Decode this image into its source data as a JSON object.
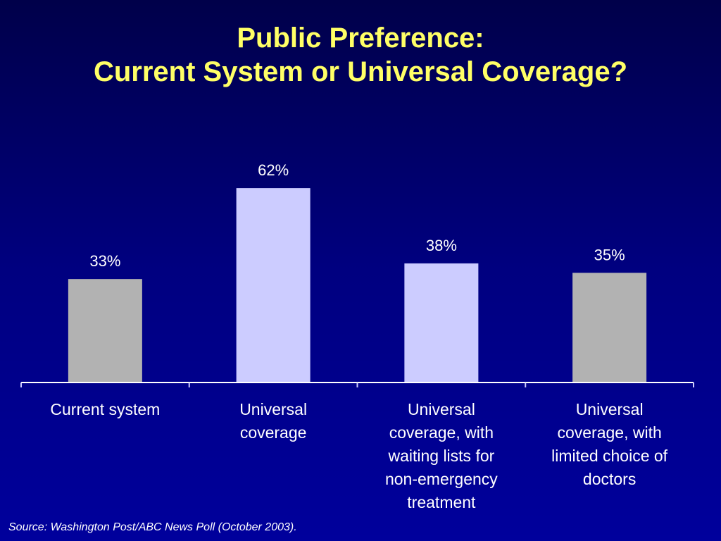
{
  "title_line1": "Public Preference:",
  "title_line2": "Current System or Universal Coverage?",
  "source": "Source: Washington Post/ABC News Poll (October 2003).",
  "colors": {
    "title": "#ffff66",
    "bar_current": "#b2b2b2",
    "bar_universal": "#ccccff",
    "text": "#ffffff"
  },
  "chart_data": {
    "type": "bar",
    "title": "Public Preference: Current System or Universal Coverage?",
    "categories": [
      [
        "Current system"
      ],
      [
        "Universal",
        "coverage"
      ],
      [
        "Universal",
        "coverage, with",
        "waiting lists for",
        "non-emergency",
        "treatment"
      ],
      [
        "Universal",
        "coverage, with",
        "limited choice of",
        "doctors"
      ]
    ],
    "values": [
      33,
      62,
      38,
      35
    ],
    "data_labels": [
      "33%",
      "62%",
      "38%",
      "35%"
    ],
    "bar_colors": [
      "#b2b2b2",
      "#ccccff",
      "#ccccff",
      "#b2b2b2"
    ],
    "ylim": [
      0,
      70
    ],
    "grid": false,
    "xlabel": "",
    "ylabel": ""
  }
}
